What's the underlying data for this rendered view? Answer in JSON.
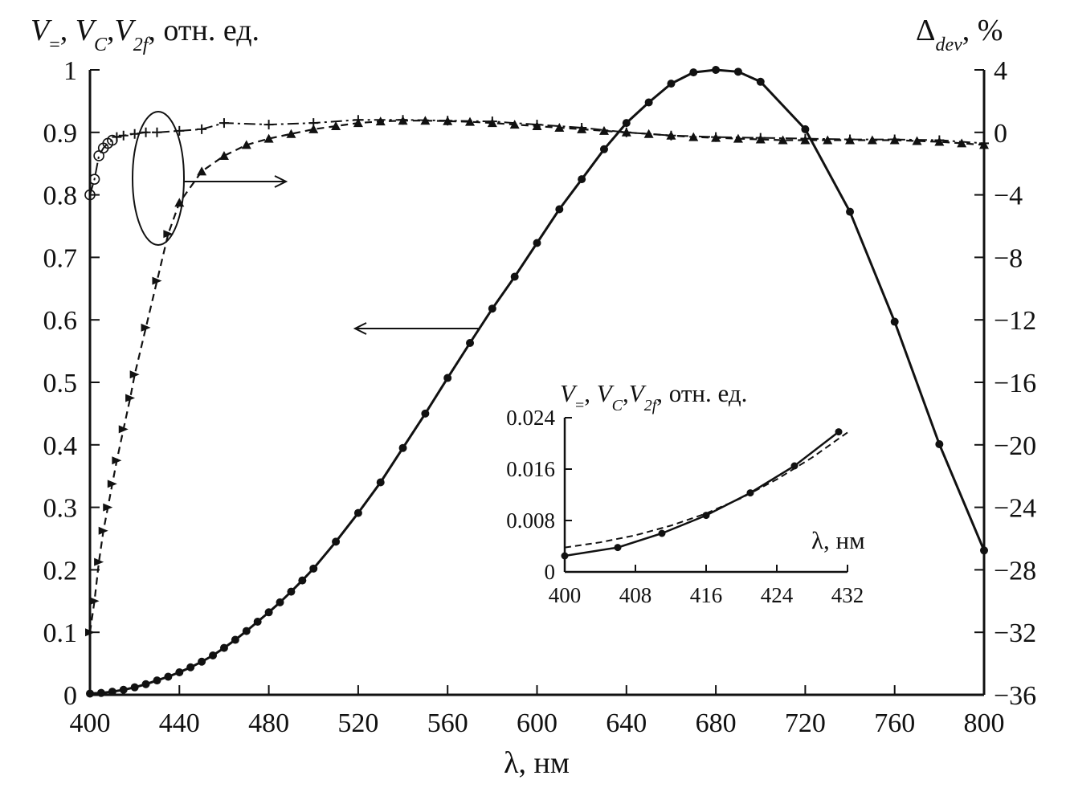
{
  "chart_data": [
    {
      "type": "line",
      "xlabel": "λ, нм",
      "ylabel_left": {
        "main": "V",
        "sub1": "=",
        "sep1": ", ",
        "main2": "V",
        "sub2": "C",
        "sep2": ",",
        "main3": "V",
        "sub3": "2f",
        "rest": ", отн. ед."
      },
      "ylabel_right": {
        "main": "Δ",
        "sub": "dev",
        "rest": ", %"
      },
      "xlim": [
        400,
        800
      ],
      "ylim_left": [
        0,
        1
      ],
      "ylim_right": [
        -36,
        4
      ],
      "x_ticks": [
        "400",
        "440",
        "480",
        "520",
        "560",
        "600",
        "640",
        "680",
        "720",
        "760",
        "800"
      ],
      "y_ticks_left": [
        "0",
        "0.1",
        "0.2",
        "0.3",
        "0.4",
        "0.5",
        "0.6",
        "0.7",
        "0.8",
        "0.9",
        "1"
      ],
      "y_ticks_right": [
        "−36",
        "−32",
        "−28",
        "−24",
        "−20",
        "−16",
        "−12",
        "−8",
        "−4",
        "0",
        "4"
      ],
      "series": [
        {
          "axis": "left",
          "style": "solid",
          "marker": "circle",
          "x": [
            400,
            405,
            410,
            415,
            420,
            425,
            430,
            435,
            440,
            445,
            450,
            455,
            460,
            465,
            470,
            475,
            480,
            485,
            490,
            495,
            500,
            510,
            520,
            530,
            540,
            550,
            560,
            570,
            580,
            590,
            600,
            610,
            620,
            630,
            640,
            650,
            660,
            670,
            680,
            690,
            700,
            720,
            740,
            760,
            780,
            800
          ],
          "values": [
            0.002,
            0.003,
            0.005,
            0.008,
            0.012,
            0.017,
            0.023,
            0.029,
            0.036,
            0.044,
            0.053,
            0.063,
            0.075,
            0.088,
            0.102,
            0.117,
            0.132,
            0.148,
            0.165,
            0.183,
            0.202,
            0.245,
            0.291,
            0.34,
            0.395,
            0.45,
            0.507,
            0.563,
            0.618,
            0.669,
            0.723,
            0.777,
            0.825,
            0.873,
            0.915,
            0.948,
            0.978,
            0.996,
            1.0,
            0.997,
            0.981,
            0.905,
            0.773,
            0.597,
            0.401,
            0.231
          ]
        },
        {
          "axis": "right",
          "style": "dashed",
          "marker": "triangle",
          "x": [
            400,
            402,
            404,
            406,
            408,
            410,
            412,
            415,
            418,
            420,
            425,
            430,
            435,
            440,
            450,
            460,
            470,
            480,
            490,
            500,
            510,
            520,
            530,
            540,
            550,
            560,
            570,
            580,
            590,
            600,
            610,
            620,
            630,
            640,
            650,
            660,
            670,
            680,
            690,
            700,
            710,
            720,
            730,
            740,
            750,
            760,
            770,
            780,
            790,
            800
          ],
          "values": [
            -32,
            -30,
            -27.5,
            -25.5,
            -24,
            -22.5,
            -21,
            -19,
            -17,
            -15.5,
            -12.5,
            -9.5,
            -6.5,
            -4.5,
            -2.5,
            -1.5,
            -0.8,
            -0.4,
            -0.1,
            0.2,
            0.4,
            0.6,
            0.7,
            0.75,
            0.75,
            0.72,
            0.68,
            0.6,
            0.5,
            0.4,
            0.3,
            0.2,
            0.1,
            0,
            -0.1,
            -0.2,
            -0.3,
            -0.35,
            -0.4,
            -0.45,
            -0.5,
            -0.5,
            -0.5,
            -0.5,
            -0.5,
            -0.5,
            -0.55,
            -0.6,
            -0.7,
            -0.8
          ]
        },
        {
          "axis": "right",
          "style": "dash-dot",
          "marker": "plus",
          "x": [
            400,
            402,
            404,
            406,
            408,
            410,
            412,
            415,
            420,
            425,
            430,
            440,
            450,
            460,
            480,
            500,
            520,
            540,
            560,
            580,
            600,
            620,
            640,
            660,
            680,
            700,
            720,
            740,
            760,
            780,
            800
          ],
          "values": [
            -4,
            -3,
            -1.5,
            -1,
            -0.7,
            -0.5,
            -0.3,
            -0.2,
            -0.1,
            0,
            0,
            0.1,
            0.2,
            0.6,
            0.5,
            0.6,
            0.8,
            0.8,
            0.75,
            0.7,
            0.5,
            0.3,
            0,
            -0.2,
            -0.3,
            -0.35,
            -0.4,
            -0.45,
            -0.45,
            -0.5,
            -0.7
          ]
        }
      ],
      "annotations": [
        "ellipse",
        "arrow-right",
        "arrow-left"
      ]
    },
    {
      "type": "line",
      "inset": true,
      "xlabel": "λ, нм",
      "ylabel": {
        "main": "V",
        "sub1": "=",
        "sep1": ", ",
        "main2": "V",
        "sub2": "C",
        "sep2": ",",
        "main3": "V",
        "sub3": "2f",
        "rest": ", отн. ед."
      },
      "xlim": [
        400,
        432
      ],
      "ylim": [
        0,
        0.024
      ],
      "x_ticks": [
        "400",
        "408",
        "416",
        "424",
        "432"
      ],
      "y_ticks": [
        "0",
        "0.008",
        "0.016",
        "0.024"
      ],
      "series": [
        {
          "style": "solid",
          "marker": "circle",
          "x": [
            400,
            406,
            411,
            416,
            421,
            426,
            431
          ],
          "values": [
            0.0025,
            0.0038,
            0.006,
            0.0088,
            0.0123,
            0.0165,
            0.0218
          ]
        },
        {
          "style": "dashed",
          "marker": "none",
          "x": [
            400,
            404,
            408,
            412,
            416,
            420,
            424,
            428,
            432
          ],
          "values": [
            0.0038,
            0.0046,
            0.0057,
            0.0072,
            0.0091,
            0.0115,
            0.0144,
            0.0178,
            0.0217
          ]
        }
      ]
    }
  ]
}
